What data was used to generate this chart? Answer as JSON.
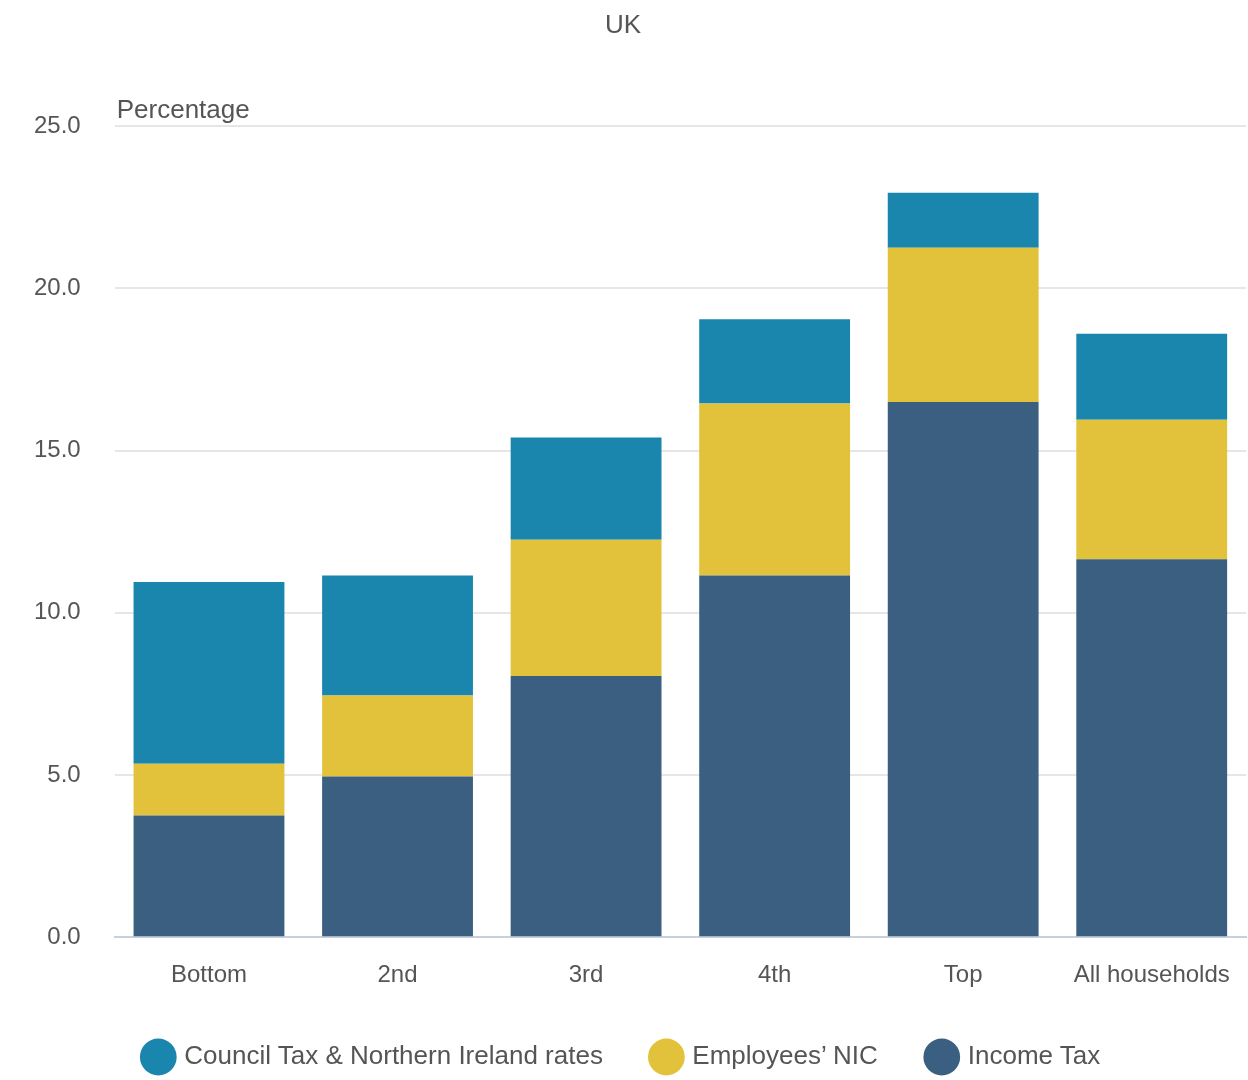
{
  "chart_data": {
    "type": "bar",
    "title": "UK",
    "ylabel": "Percentage",
    "stacked": true,
    "legend": "bottom",
    "grid": "y",
    "categories": [
      "Bottom",
      "2nd",
      "3rd",
      "4th",
      "Top",
      "All households"
    ],
    "series": [
      {
        "name": "Income Tax",
        "color": "#3a5f80",
        "values": [
          3.75,
          4.95,
          8.05,
          11.15,
          16.5,
          11.65
        ]
      },
      {
        "name": "Employees’ NIC",
        "color": "#e2c23a",
        "values": [
          1.6,
          2.5,
          4.2,
          5.3,
          4.75,
          4.3
        ]
      },
      {
        "name": "Council Tax & Northern Ireland rates",
        "color": "#1a86ad",
        "values": [
          5.6,
          3.7,
          3.15,
          2.6,
          1.7,
          2.65
        ]
      }
    ],
    "ylim": [
      0,
      25
    ],
    "yticks": [
      {
        "value": 0,
        "label": "0.0"
      },
      {
        "value": 5,
        "label": "5.0"
      },
      {
        "value": 10,
        "label": "10.0"
      },
      {
        "value": 15,
        "label": "15.0"
      },
      {
        "value": 20,
        "label": "20.0"
      },
      {
        "value": 25,
        "label": "25.0"
      }
    ]
  }
}
